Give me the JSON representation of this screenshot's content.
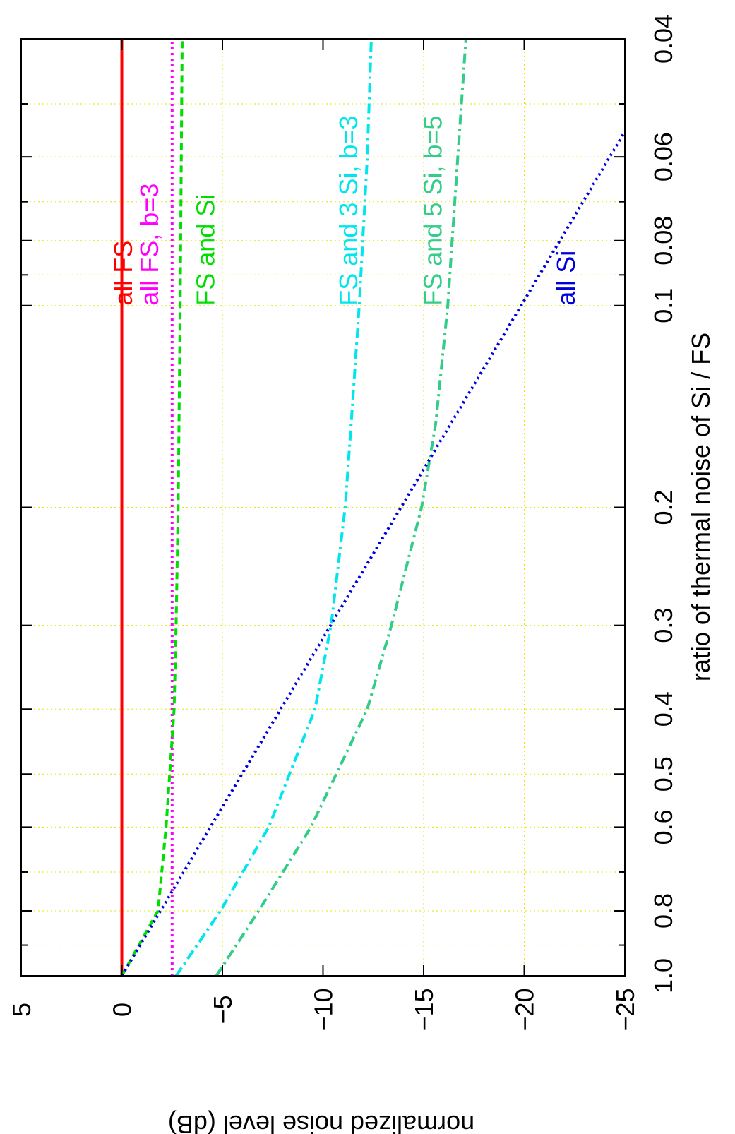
{
  "chart_data": {
    "type": "line",
    "orientation": "rotated-90",
    "xlabel": "ratio of thermal noise of Si / FS",
    "ylabel": "normalized noise level (dB)",
    "x_scale": "log",
    "xlim": [
      0.04,
      1.0
    ],
    "ylim": [
      -25,
      5
    ],
    "x_ticks": [
      1.0,
      0.8,
      0.6,
      0.5,
      0.4,
      0.3,
      0.2,
      0.1,
      0.08,
      0.06,
      0.04
    ],
    "x_tick_labels": [
      "1.0",
      "0.8",
      "0.6",
      "0.5",
      "0.4",
      "0.3",
      "0.2",
      "0.1",
      "0.08",
      "0.06",
      "0.04"
    ],
    "x_minor_ticks": [
      0.9,
      0.7,
      0.09,
      0.07,
      0.05
    ],
    "y_ticks": [
      5,
      0,
      -5,
      -10,
      -15,
      -20,
      -25
    ],
    "y_tick_labels": [
      "5",
      "0",
      "−5",
      "−10",
      "−15",
      "−20",
      "−25"
    ],
    "grid": true,
    "series": [
      {
        "name": "all FS",
        "color": "#ff0000",
        "style": "solid",
        "x": [
          1.0,
          0.04
        ],
        "y": [
          0,
          0
        ]
      },
      {
        "name": "all FS, b=3",
        "color": "#ff00ff",
        "style": "dotted",
        "x": [
          1.0,
          0.04
        ],
        "y": [
          -2.5,
          -2.5
        ]
      },
      {
        "name": "FS and Si",
        "color": "#00dd00",
        "style": "dashed",
        "x": [
          1.0,
          0.8,
          0.6,
          0.4,
          0.3,
          0.2,
          0.1,
          0.04
        ],
        "y": [
          0,
          -1.8,
          -2.2,
          -2.6,
          -2.7,
          -2.8,
          -2.9,
          -3.0
        ]
      },
      {
        "name": "FS and 3 Si, b=3",
        "color": "#00e5ee",
        "style": "dashdot",
        "x": [
          1.0,
          0.8,
          0.6,
          0.4,
          0.3,
          0.2,
          0.15,
          0.1,
          0.06,
          0.04
        ],
        "y": [
          -2.7,
          -4.9,
          -7.3,
          -9.6,
          -10.4,
          -11.1,
          -11.4,
          -11.8,
          -12.2,
          -12.4
        ]
      },
      {
        "name": "FS and 5 Si, b=5",
        "color": "#33cc88",
        "style": "dashdot",
        "x": [
          1.0,
          0.8,
          0.6,
          0.4,
          0.3,
          0.2,
          0.15,
          0.1,
          0.06,
          0.04
        ],
        "y": [
          -4.7,
          -6.8,
          -9.4,
          -12.2,
          -13.4,
          -14.9,
          -15.6,
          -16.2,
          -16.7,
          -17.1
        ]
      },
      {
        "name": "all Si",
        "color": "#0000dd",
        "style": "dotted",
        "x": [
          1.0,
          0.055
        ],
        "y": [
          0,
          -25
        ]
      }
    ],
    "annotations": [
      {
        "text": "all FS",
        "color": "#ff0000",
        "x": 0.1,
        "y": -0.5
      },
      {
        "text": "all FS, b=3",
        "color": "#ff00ff",
        "x": 0.1,
        "y": -1.8
      },
      {
        "text": "FS and Si",
        "color": "#00dd00",
        "x": 0.1,
        "y": -4.6
      },
      {
        "text": "FS and 3 Si, b=3",
        "color": "#00e5ee",
        "x": 0.1,
        "y": -11.7
      },
      {
        "text": "FS and 5 Si, b=5",
        "color": "#33cc88",
        "x": 0.1,
        "y": -15.9
      },
      {
        "text": "all Si",
        "color": "#0000dd",
        "x": 0.1,
        "y": -22.5
      }
    ]
  }
}
